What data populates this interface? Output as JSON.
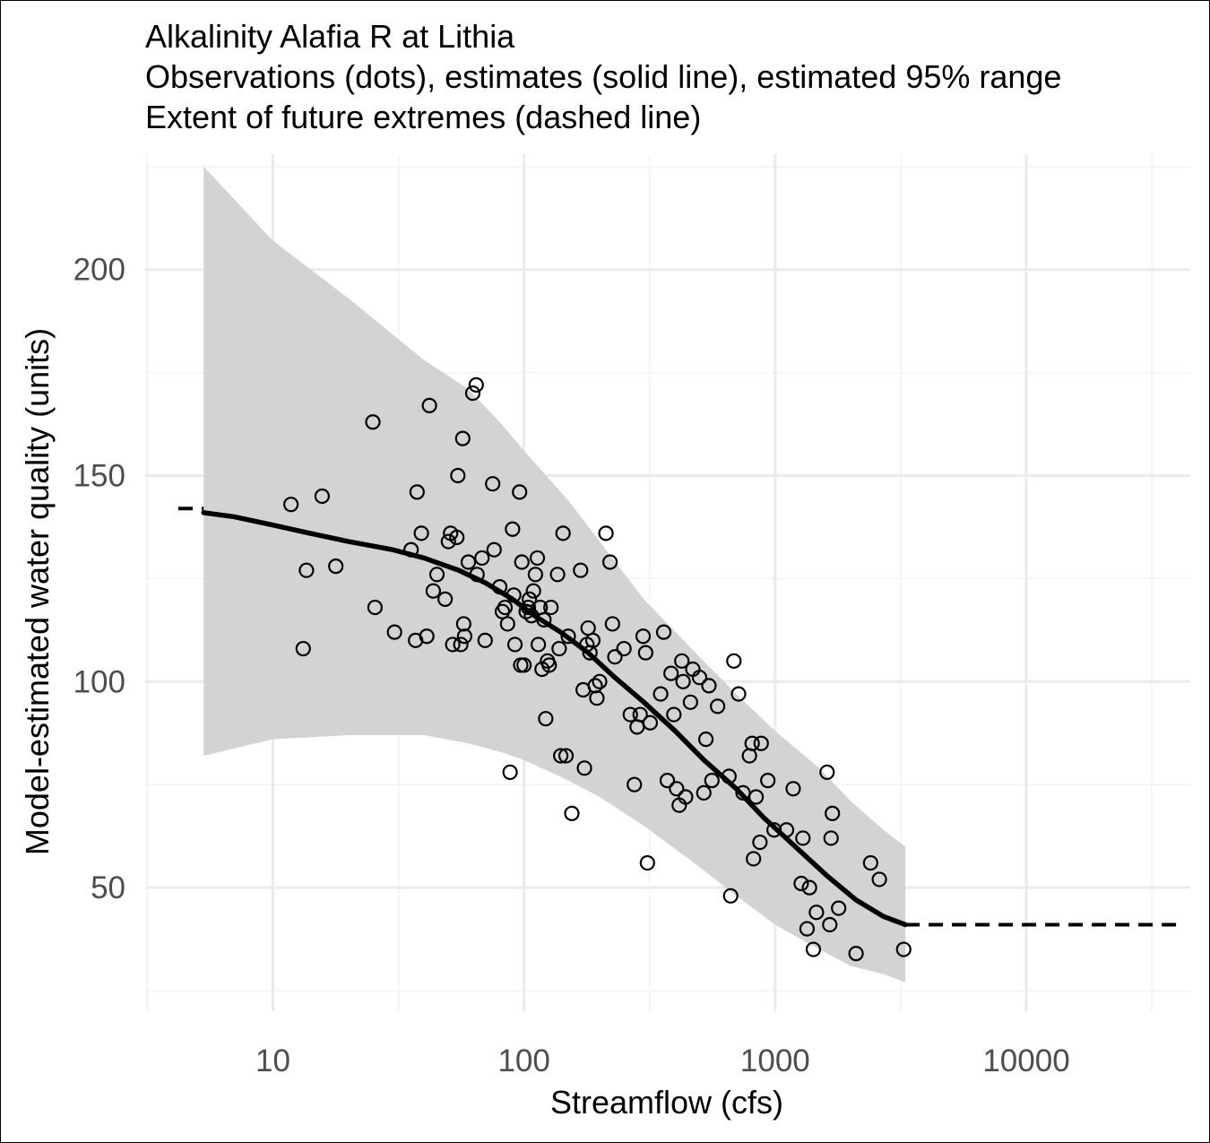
{
  "chart_data": {
    "type": "scatter",
    "title": "Alkalinity Alafia R at Lithia",
    "subtitle_lines": [
      "Observations (dots), estimates (solid line), estimated 95% range",
      "Extent of future extremes (dashed line)"
    ],
    "xlabel": "Streamflow (cfs)",
    "ylabel": "Model-estimated water quality (units)",
    "x_scale": "log10",
    "xlim": [
      3.1,
      45000
    ],
    "ylim": [
      20,
      228
    ],
    "x_ticks": [
      10,
      100,
      1000,
      10000
    ],
    "x_tick_labels": [
      "10",
      "100",
      "1000",
      "10000"
    ],
    "y_ticks": [
      50,
      100,
      150,
      200
    ],
    "y_tick_labels": [
      "50",
      "100",
      "150",
      "200"
    ],
    "grid": true,
    "colors": {
      "band": "#d3d3d3",
      "line": "#000000",
      "points": "#000000",
      "grid_major": "#ebebeb",
      "grid_minor": "#f2f2f2"
    },
    "estimate_curve": {
      "x": [
        5.3,
        7,
        10,
        14,
        20,
        30,
        40,
        55,
        70,
        90,
        110,
        140,
        180,
        230,
        300,
        400,
        520,
        700,
        900,
        1200,
        1600,
        2100,
        2700,
        3300
      ],
      "y": [
        141,
        140,
        138,
        136,
        134,
        132,
        130,
        127,
        124,
        120,
        116,
        112,
        107,
        101,
        95,
        88,
        81,
        74,
        67,
        60,
        53,
        47,
        43,
        41
      ]
    },
    "band_95": {
      "x": [
        5.3,
        10,
        20,
        40,
        60,
        80,
        100,
        150,
        200,
        300,
        500,
        700,
        1000,
        1500,
        2000,
        2700,
        3300
      ],
      "upper": [
        225,
        207,
        193,
        178,
        171,
        163,
        156,
        144,
        134,
        120,
        106,
        97,
        88,
        79,
        71,
        64,
        60
      ],
      "lower": [
        82,
        86,
        87,
        87,
        85,
        83,
        81,
        76,
        72,
        65,
        55,
        48,
        41,
        35,
        31,
        29,
        27
      ]
    },
    "future_extremes": {
      "low": {
        "x": [
          4.2,
          5.3
        ],
        "y": [
          142,
          142
        ]
      },
      "high": {
        "x": [
          3300,
          40000
        ],
        "y": [
          41,
          41
        ]
      }
    },
    "observations": [
      [
        11.8,
        143
      ],
      [
        13.2,
        108
      ],
      [
        13.6,
        127
      ],
      [
        15.7,
        145
      ],
      [
        17.8,
        128
      ],
      [
        25.0,
        163
      ],
      [
        25.5,
        118
      ],
      [
        30.5,
        112
      ],
      [
        35.5,
        132
      ],
      [
        37.0,
        110
      ],
      [
        37.5,
        146
      ],
      [
        39.0,
        136
      ],
      [
        41.0,
        111
      ],
      [
        42.0,
        167
      ],
      [
        43.5,
        122
      ],
      [
        45.0,
        126
      ],
      [
        48.5,
        120
      ],
      [
        50.0,
        134
      ],
      [
        51.0,
        136
      ],
      [
        52.0,
        109
      ],
      [
        54.0,
        135
      ],
      [
        54.5,
        150
      ],
      [
        56.0,
        109
      ],
      [
        57.0,
        159
      ],
      [
        57.5,
        114
      ],
      [
        58.0,
        111
      ],
      [
        60.0,
        129
      ],
      [
        62.5,
        170
      ],
      [
        64.5,
        172
      ],
      [
        65.0,
        126
      ],
      [
        68.0,
        130
      ],
      [
        70.0,
        110
      ],
      [
        75.0,
        148
      ],
      [
        76.0,
        132
      ],
      [
        80.0,
        123
      ],
      [
        82.0,
        117
      ],
      [
        84.0,
        118
      ],
      [
        86.0,
        114
      ],
      [
        88.0,
        78
      ],
      [
        90.0,
        137
      ],
      [
        91.0,
        121
      ],
      [
        92.0,
        109
      ],
      [
        96.0,
        146
      ],
      [
        97.0,
        104
      ],
      [
        98.0,
        129
      ],
      [
        100.0,
        104
      ],
      [
        102.0,
        117
      ],
      [
        104.0,
        118
      ],
      [
        105.0,
        120
      ],
      [
        107.0,
        116
      ],
      [
        109.0,
        122
      ],
      [
        111.0,
        126
      ],
      [
        113.0,
        130
      ],
      [
        114.0,
        109
      ],
      [
        116.0,
        118
      ],
      [
        118.0,
        103
      ],
      [
        120.0,
        115
      ],
      [
        122.0,
        91
      ],
      [
        124.0,
        105
      ],
      [
        126.0,
        104
      ],
      [
        128.0,
        118
      ],
      [
        136.0,
        126
      ],
      [
        138.0,
        108
      ],
      [
        140.0,
        82
      ],
      [
        143.0,
        136
      ],
      [
        147.0,
        82
      ],
      [
        150.0,
        111
      ],
      [
        155.0,
        68
      ],
      [
        168.0,
        127
      ],
      [
        172.0,
        98
      ],
      [
        174.0,
        79
      ],
      [
        178.0,
        109
      ],
      [
        180.0,
        113
      ],
      [
        183.0,
        107
      ],
      [
        188.0,
        110
      ],
      [
        192.0,
        99
      ],
      [
        195.0,
        96
      ],
      [
        200.0,
        100
      ],
      [
        212.0,
        136
      ],
      [
        220.0,
        129
      ],
      [
        225.0,
        114
      ],
      [
        230.0,
        106
      ],
      [
        250.0,
        108
      ],
      [
        265.0,
        92
      ],
      [
        275.0,
        75
      ],
      [
        282.0,
        89
      ],
      [
        290.0,
        92
      ],
      [
        298.0,
        111
      ],
      [
        305.0,
        107
      ],
      [
        310.0,
        56
      ],
      [
        318.0,
        90
      ],
      [
        350.0,
        97
      ],
      [
        360.0,
        112
      ],
      [
        372.0,
        76
      ],
      [
        385.0,
        102
      ],
      [
        395.0,
        92
      ],
      [
        405.0,
        74
      ],
      [
        415.0,
        70
      ],
      [
        425.0,
        105
      ],
      [
        430.0,
        100
      ],
      [
        440.0,
        72
      ],
      [
        460.0,
        95
      ],
      [
        470.0,
        103
      ],
      [
        500.0,
        101
      ],
      [
        520.0,
        73
      ],
      [
        530.0,
        86
      ],
      [
        545.0,
        99
      ],
      [
        560.0,
        76
      ],
      [
        590.0,
        94
      ],
      [
        655.0,
        77
      ],
      [
        665.0,
        48
      ],
      [
        685.0,
        105
      ],
      [
        715.0,
        97
      ],
      [
        745.0,
        73
      ],
      [
        790.0,
        82
      ],
      [
        810.0,
        85
      ],
      [
        820.0,
        57
      ],
      [
        840.0,
        72
      ],
      [
        870.0,
        61
      ],
      [
        880.0,
        85
      ],
      [
        935.0,
        76
      ],
      [
        990.0,
        64
      ],
      [
        1110.0,
        64
      ],
      [
        1180.0,
        74
      ],
      [
        1270.0,
        51
      ],
      [
        1290.0,
        62
      ],
      [
        1340.0,
        40
      ],
      [
        1370.0,
        50
      ],
      [
        1420.0,
        35
      ],
      [
        1460.0,
        44
      ],
      [
        1610.0,
        78
      ],
      [
        1650.0,
        41
      ],
      [
        1670.0,
        62
      ],
      [
        1690.0,
        68
      ],
      [
        1790.0,
        45
      ],
      [
        2100.0,
        34
      ],
      [
        2400.0,
        56
      ],
      [
        2600.0,
        52
      ],
      [
        3250.0,
        35
      ]
    ]
  }
}
